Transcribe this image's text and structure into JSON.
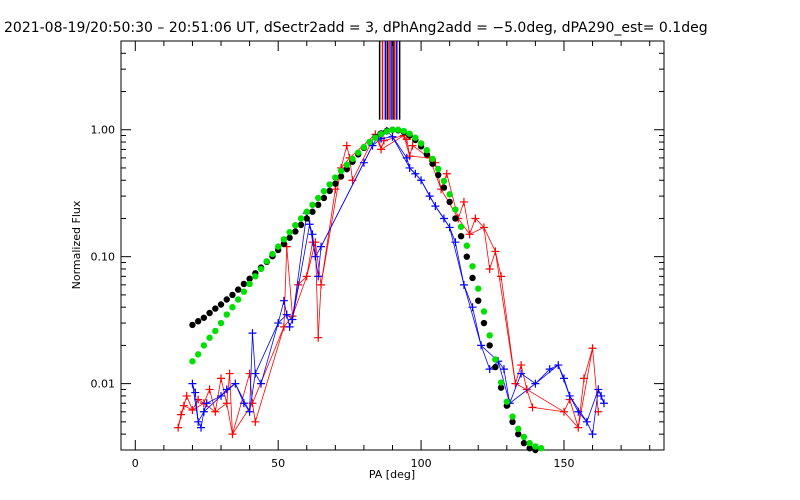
{
  "title": "2021-08-19/20:50:30 – 20:51:06 UT, dSectr2add = 3, dPhAng2add = −5.0deg, dPA290_est=  0.1deg",
  "chart_data": {
    "type": "scatter",
    "xlabel": "PA [deg]",
    "ylabel": "Normalized Flux",
    "xlim": [
      -5,
      185
    ],
    "ylim": [
      0.003,
      5
    ],
    "yscale": "log",
    "grid": false,
    "xticks": [
      0,
      50,
      100,
      150
    ],
    "xtick_labels": [
      "0",
      "50",
      "100",
      "150"
    ],
    "yticks": [
      0.01,
      0.1,
      1.0
    ],
    "ytick_labels": [
      "0.01",
      "0.10",
      "1.00"
    ],
    "vertical_markers": {
      "colors": [
        "#000000",
        "#ff0000",
        "#0000ff"
      ],
      "x": [
        85.5,
        86.5,
        87.5,
        88.2,
        88.8,
        89.5,
        90.2,
        90.8,
        91.5,
        92.5
      ],
      "y_from": 1.2,
      "y_to": 5
    },
    "series": [
      {
        "color": "#000000",
        "marker": "circle",
        "x": [
          20,
          22,
          24,
          26,
          28,
          30,
          32,
          34,
          36,
          38,
          40,
          42,
          44,
          46,
          48,
          50,
          52,
          54,
          56,
          58,
          60,
          62,
          64,
          66,
          68,
          70,
          72,
          74,
          76,
          78,
          80,
          82,
          84,
          86,
          88,
          90,
          92,
          94,
          96,
          98,
          100,
          102,
          104,
          106,
          108,
          110,
          112,
          114,
          116,
          118,
          120,
          122,
          124,
          126,
          128,
          130,
          132,
          134,
          136,
          138,
          140
        ],
        "y": [
          0.029,
          0.031,
          0.033,
          0.036,
          0.039,
          0.042,
          0.046,
          0.05,
          0.055,
          0.061,
          0.067,
          0.074,
          0.082,
          0.091,
          0.101,
          0.113,
          0.126,
          0.141,
          0.158,
          0.178,
          0.2,
          0.226,
          0.256,
          0.29,
          0.33,
          0.376,
          0.428,
          0.489,
          0.56,
          0.64,
          0.72,
          0.8,
          0.875,
          0.935,
          0.98,
          1.0,
          0.99,
          0.955,
          0.9,
          0.83,
          0.74,
          0.64,
          0.54,
          0.44,
          0.35,
          0.27,
          0.2,
          0.145,
          0.1,
          0.068,
          0.045,
          0.03,
          0.02,
          0.0135,
          0.0093,
          0.0067,
          0.005,
          0.004,
          0.0034,
          0.0031,
          0.003
        ]
      },
      {
        "color": "#00e000",
        "marker": "circle",
        "x": [
          20,
          22,
          24,
          26,
          28,
          30,
          32,
          34,
          36,
          38,
          40,
          42,
          44,
          46,
          48,
          50,
          52,
          54,
          56,
          58,
          60,
          62,
          64,
          66,
          68,
          70,
          72,
          74,
          76,
          78,
          80,
          82,
          84,
          86,
          88,
          90,
          92,
          94,
          96,
          98,
          100,
          102,
          104,
          106,
          108,
          110,
          112,
          114,
          116,
          118,
          120,
          122,
          124,
          126,
          128,
          130,
          132,
          134,
          136,
          138,
          140,
          142
        ],
        "y": [
          0.015,
          0.017,
          0.02,
          0.023,
          0.026,
          0.03,
          0.035,
          0.04,
          0.046,
          0.053,
          0.061,
          0.07,
          0.08,
          0.092,
          0.105,
          0.12,
          0.137,
          0.156,
          0.177,
          0.2,
          0.226,
          0.256,
          0.29,
          0.328,
          0.371,
          0.42,
          0.473,
          0.53,
          0.59,
          0.66,
          0.73,
          0.8,
          0.865,
          0.925,
          0.97,
          1.0,
          1.0,
          0.975,
          0.93,
          0.865,
          0.78,
          0.69,
          0.59,
          0.49,
          0.395,
          0.31,
          0.235,
          0.172,
          0.122,
          0.084,
          0.056,
          0.037,
          0.024,
          0.0155,
          0.0102,
          0.0072,
          0.0055,
          0.0044,
          0.0038,
          0.0034,
          0.0032,
          0.0031
        ]
      },
      {
        "color": "#ff0000",
        "marker": "plus",
        "x": [
          15,
          16,
          17,
          18,
          20,
          22,
          24,
          26,
          28,
          30,
          32,
          33,
          34,
          40,
          41,
          42,
          52,
          53,
          55,
          57,
          60,
          62,
          63,
          64,
          65,
          70,
          72,
          74,
          75,
          76,
          84,
          85,
          86,
          87,
          94,
          95,
          96,
          97,
          103,
          105,
          107,
          109,
          113,
          115,
          117,
          119,
          122,
          124,
          126,
          128,
          133,
          135,
          137,
          139,
          150,
          152,
          155,
          157,
          160,
          162
        ],
        "y": [
          0.0045,
          0.0057,
          0.0067,
          0.008,
          0.0062,
          0.0075,
          0.007,
          0.009,
          0.006,
          0.011,
          0.007,
          0.012,
          0.004,
          0.012,
          0.007,
          0.005,
          0.028,
          0.12,
          0.034,
          0.06,
          0.07,
          0.13,
          0.13,
          0.023,
          0.06,
          0.34,
          0.5,
          0.75,
          0.6,
          0.4,
          0.92,
          0.88,
          0.7,
          0.82,
          0.9,
          0.84,
          0.62,
          0.75,
          0.6,
          0.55,
          0.34,
          0.45,
          0.2,
          0.27,
          0.15,
          0.2,
          0.17,
          0.08,
          0.11,
          0.07,
          0.01,
          0.014,
          0.009,
          0.0065,
          0.006,
          0.0075,
          0.0045,
          0.011,
          0.019,
          0.006
        ]
      },
      {
        "color": "#0000ff",
        "marker": "plus",
        "x": [
          20,
          21,
          22,
          23,
          24,
          25,
          30,
          32,
          35,
          38,
          40,
          41,
          42,
          44,
          50,
          52,
          53,
          54,
          55,
          60,
          61,
          62,
          63,
          64,
          65,
          80,
          83,
          85,
          86,
          88,
          90,
          95,
          96,
          98,
          100,
          103,
          105,
          108,
          110,
          112,
          115,
          118,
          121,
          124,
          127,
          129,
          131,
          135,
          140,
          145,
          148,
          150,
          152,
          155,
          158,
          160,
          162,
          163,
          164
        ],
        "y": [
          0.01,
          0.0085,
          0.005,
          0.0045,
          0.006,
          0.007,
          0.008,
          0.009,
          0.01,
          0.007,
          0.006,
          0.025,
          0.012,
          0.01,
          0.03,
          0.045,
          0.035,
          0.028,
          0.032,
          0.22,
          0.18,
          0.15,
          0.1,
          0.07,
          0.12,
          0.55,
          0.75,
          0.9,
          0.85,
          0.98,
          0.88,
          0.6,
          0.5,
          0.45,
          0.4,
          0.3,
          0.25,
          0.2,
          0.17,
          0.13,
          0.06,
          0.04,
          0.02,
          0.013,
          0.015,
          0.013,
          0.007,
          0.012,
          0.01,
          0.013,
          0.014,
          0.011,
          0.008,
          0.006,
          0.005,
          0.004,
          0.009,
          0.008,
          0.007
        ]
      }
    ]
  }
}
